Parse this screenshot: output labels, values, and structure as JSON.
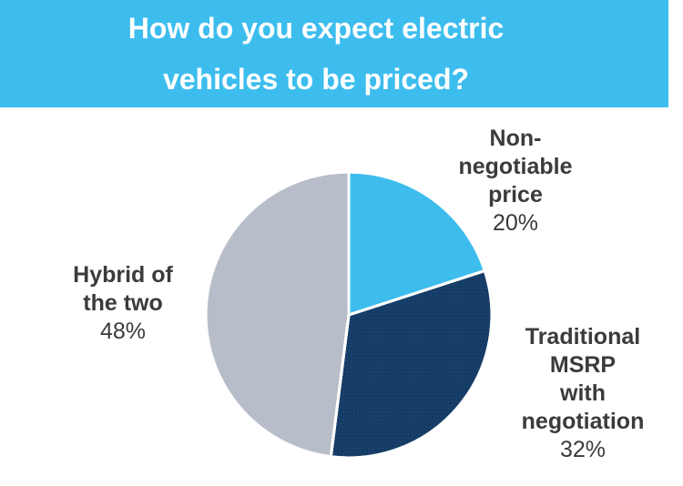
{
  "chart_data": {
    "type": "pie",
    "title_lines": [
      "How do you expect electric",
      "vehicles to be priced?"
    ],
    "slices": [
      {
        "label_lines": [
          "Non-",
          "negotiable",
          "price"
        ],
        "value": 20,
        "value_label": "20%",
        "color": "#3cbdee"
      },
      {
        "label_lines": [
          "Traditional",
          "MSRP",
          "with",
          "negotiation"
        ],
        "value": 32,
        "value_label": "32%",
        "color": "#143c66"
      },
      {
        "label_lines": [
          "Hybrid of",
          "the two"
        ],
        "value": 48,
        "value_label": "48%",
        "color": "#b8bec9"
      }
    ],
    "start": "12 o'clock",
    "direction": "clockwise",
    "legend": "none"
  }
}
